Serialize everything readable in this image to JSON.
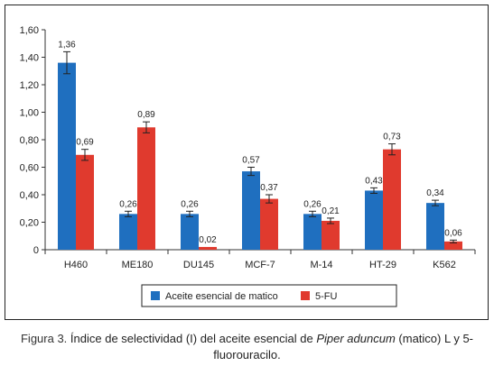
{
  "chart_data": {
    "type": "bar",
    "categories": [
      "H460",
      "ME180",
      "DU145",
      "MCF-7",
      "M-14",
      "HT-29",
      "K562"
    ],
    "series": [
      {
        "name": "Aceite esencial de matico",
        "color": "#1F6FBF",
        "values": [
          1.36,
          0.26,
          0.26,
          0.57,
          0.26,
          0.43,
          0.34
        ],
        "labels": [
          "1,36",
          "0,26",
          "0,26",
          "0,57",
          "0,26",
          "0,43",
          "0,34"
        ],
        "errors": [
          0.08,
          0.02,
          0.02,
          0.03,
          0.02,
          0.02,
          0.02
        ]
      },
      {
        "name": "5-FU",
        "color": "#E03A2E",
        "values": [
          0.69,
          0.89,
          0.02,
          0.37,
          0.21,
          0.73,
          0.06
        ],
        "labels": [
          "0,69",
          "0,89",
          "0,02",
          "0,37",
          "0,21",
          "0,73",
          "0,06"
        ],
        "errors": [
          0.04,
          0.04,
          0.0,
          0.03,
          0.02,
          0.04,
          0.01
        ]
      }
    ],
    "yticks": [
      "0",
      "0,20",
      "0,40",
      "0,60",
      "0,80",
      "1,00",
      "1,20",
      "1,40",
      "1,60"
    ],
    "ylim": [
      0,
      1.6
    ],
    "grid": false,
    "legend": "bottom"
  },
  "caption": {
    "label": "Figura 3.",
    "text_before": " Índice de selectividad (I) del aceite esencial de ",
    "italic": "Piper aduncum",
    "text_after": " (matico) L y 5-fluorouracilo."
  }
}
